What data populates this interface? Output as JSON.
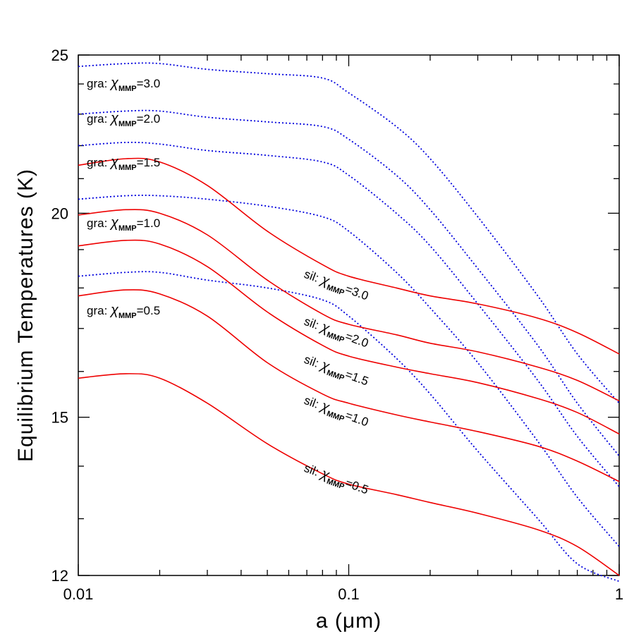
{
  "chart_data": {
    "type": "line",
    "xlabel": "a   (μm)",
    "ylabel": "Equilibrium Temperatures  (K)",
    "xscale": "log",
    "yscale": "log",
    "xlim": [
      0.01,
      1
    ],
    "ylim": [
      12,
      25
    ],
    "x_ticks": [
      {
        "value": 0.01,
        "label": "0.01"
      },
      {
        "value": 0.1,
        "label": "0.1"
      },
      {
        "value": 1,
        "label": "1"
      }
    ],
    "y_ticks": [
      {
        "value": 12,
        "label": "12"
      },
      {
        "value": 15,
        "label": "15"
      },
      {
        "value": 20,
        "label": "20"
      },
      {
        "value": 25,
        "label": "25"
      }
    ],
    "grid": false,
    "x": [
      0.01,
      0.015,
      0.02,
      0.03,
      0.05,
      0.08,
      0.1,
      0.15,
      0.2,
      0.3,
      0.5,
      0.7,
      1.0
    ],
    "series": [
      {
        "name": "gra: χMMP=3.0",
        "material": "gra",
        "chi": "3.0",
        "color": "#0000dd",
        "style": "dotted",
        "values": [
          24.6,
          24.7,
          24.7,
          24.5,
          24.35,
          24.2,
          23.7,
          22.6,
          21.6,
          19.9,
          17.8,
          16.4,
          15.3
        ]
      },
      {
        "name": "gra: χMMP=2.0",
        "material": "gra",
        "chi": "2.0",
        "color": "#0000dd",
        "style": "dotted",
        "values": [
          23.0,
          23.1,
          23.1,
          22.9,
          22.75,
          22.6,
          22.2,
          21.1,
          20.1,
          18.5,
          16.6,
          15.3,
          14.2
        ]
      },
      {
        "name": "gra: χMMP=1.5",
        "material": "gra",
        "chi": "1.5",
        "color": "#0000dd",
        "style": "dotted",
        "values": [
          22.0,
          22.1,
          22.05,
          21.85,
          21.7,
          21.5,
          21.1,
          20.0,
          19.1,
          17.6,
          15.8,
          14.6,
          13.6
        ]
      },
      {
        "name": "gra: χMMP=1.0",
        "material": "gra",
        "chi": "1.0",
        "color": "#0000dd",
        "style": "dotted",
        "values": [
          20.4,
          20.5,
          20.5,
          20.4,
          20.2,
          19.9,
          19.5,
          18.4,
          17.5,
          16.2,
          14.5,
          13.4,
          12.5
        ]
      },
      {
        "name": "gra: χMMP=0.5",
        "material": "gra",
        "chi": "0.5",
        "color": "#0000dd",
        "style": "dotted",
        "values": [
          18.3,
          18.4,
          18.4,
          18.2,
          18.0,
          17.7,
          17.3,
          16.3,
          15.5,
          14.3,
          13.0,
          12.2,
          11.9
        ]
      },
      {
        "name": "sil: χMMP=3.0",
        "material": "sil",
        "chi": "3.0",
        "color": "#ee0000",
        "style": "solid",
        "values": [
          21.4,
          21.6,
          21.5,
          20.8,
          19.5,
          18.6,
          18.3,
          18.0,
          17.8,
          17.6,
          17.25,
          16.9,
          16.4
        ]
      },
      {
        "name": "sil: χMMP=2.0",
        "material": "sil",
        "chi": "2.0",
        "color": "#ee0000",
        "style": "solid",
        "values": [
          19.95,
          20.1,
          20.0,
          19.4,
          18.2,
          17.35,
          17.1,
          16.85,
          16.65,
          16.45,
          16.1,
          15.8,
          15.35
        ]
      },
      {
        "name": "sil: χMMP=1.5",
        "material": "sil",
        "chi": "1.5",
        "color": "#ee0000",
        "style": "solid",
        "values": [
          19.1,
          19.25,
          19.15,
          18.55,
          17.4,
          16.6,
          16.35,
          16.1,
          15.95,
          15.75,
          15.4,
          15.1,
          14.65
        ]
      },
      {
        "name": "sil: χMMP=1.0",
        "material": "sil",
        "chi": "1.0",
        "color": "#ee0000",
        "style": "solid",
        "values": [
          17.8,
          17.95,
          17.85,
          17.3,
          16.2,
          15.5,
          15.3,
          15.05,
          14.9,
          14.7,
          14.4,
          14.1,
          13.7
        ]
      },
      {
        "name": "sil: χMMP=0.5",
        "material": "sil",
        "chi": "0.5",
        "color": "#ee0000",
        "style": "solid",
        "values": [
          15.85,
          15.95,
          15.85,
          15.3,
          14.45,
          13.85,
          13.65,
          13.45,
          13.3,
          13.1,
          12.8,
          12.5,
          12.0
        ]
      }
    ],
    "labels": [
      {
        "material": "gra",
        "chi": "3.0"
      },
      {
        "material": "gra",
        "chi": "2.0"
      },
      {
        "material": "gra",
        "chi": "1.5"
      },
      {
        "material": "gra",
        "chi": "1.0"
      },
      {
        "material": "gra",
        "chi": "0.5"
      },
      {
        "material": "sil",
        "chi": "3.0"
      },
      {
        "material": "sil",
        "chi": "2.0"
      },
      {
        "material": "sil",
        "chi": "1.5"
      },
      {
        "material": "sil",
        "chi": "1.0"
      },
      {
        "material": "sil",
        "chi": "0.5"
      }
    ],
    "label_prefix_separator": ": ",
    "chi_symbol": "χ",
    "chi_subscript": "MMP",
    "equals": "="
  }
}
